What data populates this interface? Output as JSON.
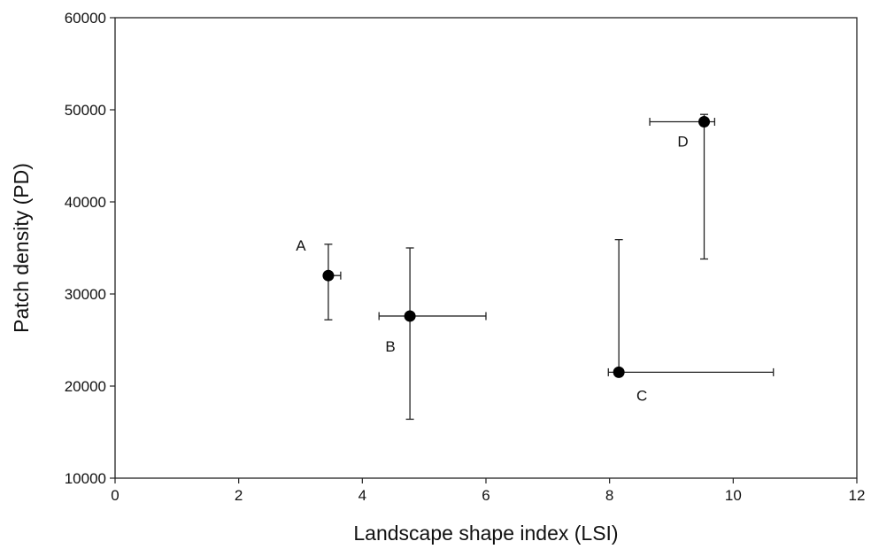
{
  "chart_data": {
    "type": "scatter",
    "title": "",
    "xlabel": "Landscape shape index (LSI)",
    "ylabel": "Patch density (PD)",
    "xlim": [
      0,
      12
    ],
    "ylim": [
      10000,
      60000
    ],
    "xticks": [
      0,
      2,
      4,
      6,
      8,
      10,
      12
    ],
    "yticks": [
      10000,
      20000,
      30000,
      40000,
      50000,
      60000
    ],
    "grid": false,
    "legend": "none",
    "points": [
      {
        "label": "A",
        "x": 3.45,
        "y": 32000,
        "x_err": [
          3.4,
          3.65
        ],
        "y_err": [
          27200,
          35400
        ],
        "label_position": "upper-left"
      },
      {
        "label": "B",
        "x": 4.77,
        "y": 27600,
        "x_err": [
          4.27,
          6.0
        ],
        "y_err": [
          16400,
          35000
        ],
        "label_position": "lower-left"
      },
      {
        "label": "C",
        "x": 8.15,
        "y": 21500,
        "x_err": [
          7.98,
          10.65
        ],
        "y_err": [
          21500,
          35900
        ],
        "label_position": "lower-right"
      },
      {
        "label": "D",
        "x": 9.53,
        "y": 48700,
        "x_err": [
          8.65,
          9.7
        ],
        "y_err": [
          33800,
          49500
        ],
        "label_position": "lower-left"
      }
    ]
  }
}
